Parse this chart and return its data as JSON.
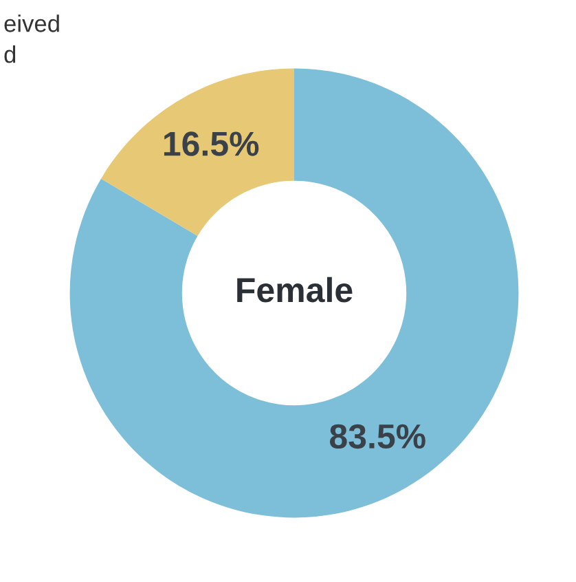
{
  "chart_data": {
    "type": "donut",
    "title": "Female",
    "categories": [
      null,
      null
    ],
    "values": [
      83.5,
      16.5
    ],
    "colors": [
      "#7dbfd8",
      "#e7c874"
    ],
    "value_labels": [
      "83.5%",
      "16.5%"
    ],
    "annotations": [
      "eived\nd"
    ]
  }
}
